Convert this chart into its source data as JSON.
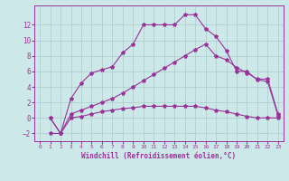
{
  "xlabel": "Windchill (Refroidissement éolien,°C)",
  "background_color": "#cce8e8",
  "line_color": "#993399",
  "grid_color": "#aacccc",
  "xlim": [
    -0.5,
    23.5
  ],
  "ylim": [
    -3.0,
    14.5
  ],
  "xticks": [
    0,
    1,
    2,
    3,
    4,
    5,
    6,
    7,
    8,
    9,
    10,
    11,
    12,
    13,
    14,
    15,
    16,
    17,
    18,
    19,
    20,
    21,
    22,
    23
  ],
  "yticks": [
    -2,
    0,
    2,
    4,
    6,
    8,
    10,
    12
  ],
  "line1_x": [
    1,
    2,
    3,
    4,
    5,
    6,
    7,
    8,
    9,
    10,
    11,
    12,
    13,
    14,
    15,
    16,
    17,
    18,
    19,
    20,
    21,
    22,
    23
  ],
  "line1_y": [
    0.0,
    -2.0,
    2.5,
    4.5,
    5.8,
    6.2,
    6.6,
    8.4,
    9.5,
    12.0,
    12.0,
    12.0,
    12.0,
    13.3,
    13.3,
    11.5,
    10.5,
    8.7,
    6.0,
    6.0,
    4.9,
    4.7,
    0.3
  ],
  "line2_x": [
    1,
    2,
    3,
    4,
    5,
    6,
    7,
    8,
    9,
    10,
    11,
    12,
    13,
    14,
    15,
    16,
    17,
    18,
    19,
    20,
    21,
    22,
    23
  ],
  "line2_y": [
    0.0,
    -2.0,
    0.5,
    1.0,
    1.5,
    2.0,
    2.5,
    3.2,
    4.0,
    4.8,
    5.6,
    6.4,
    7.2,
    8.0,
    8.8,
    9.5,
    8.0,
    7.5,
    6.5,
    5.8,
    5.0,
    5.0,
    0.5
  ],
  "line3_x": [
    1,
    2,
    3,
    4,
    5,
    6,
    7,
    8,
    9,
    10,
    11,
    12,
    13,
    14,
    15,
    16,
    17,
    18,
    19,
    20,
    21,
    22,
    23
  ],
  "line3_y": [
    -2.0,
    -2.0,
    0.0,
    0.2,
    0.5,
    0.8,
    1.0,
    1.2,
    1.3,
    1.5,
    1.5,
    1.5,
    1.5,
    1.5,
    1.5,
    1.3,
    1.0,
    0.8,
    0.5,
    0.2,
    0.0,
    0.0,
    0.0
  ]
}
